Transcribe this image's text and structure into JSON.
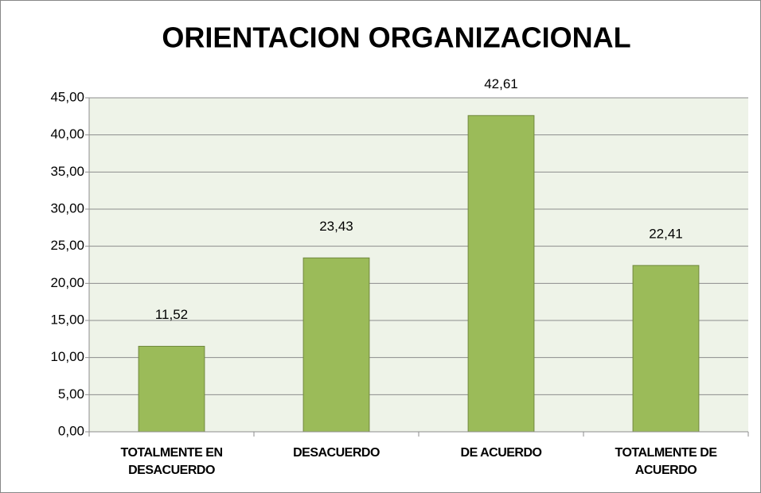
{
  "chart_data": {
    "type": "bar",
    "title": "ORIENTACION ORGANIZACIONAL",
    "categories": [
      "TOTALMENTE EN DESACUERDO",
      "DESACUERDO",
      "DE ACUERDO",
      "TOTALMENTE DE ACUERDO"
    ],
    "values": [
      11.52,
      23.43,
      42.61,
      22.41
    ],
    "value_labels": [
      "11,52",
      "23,43",
      "42,61",
      "22,41"
    ],
    "color": "#9bbb59",
    "ylim": [
      0,
      45
    ],
    "yticks": [
      {
        "value": 0,
        "label": "0,00"
      },
      {
        "value": 5,
        "label": "5,00"
      },
      {
        "value": 10,
        "label": "10,00"
      },
      {
        "value": 15,
        "label": "15,00"
      },
      {
        "value": 20,
        "label": "20,00"
      },
      {
        "value": 25,
        "label": "25,00"
      },
      {
        "value": 30,
        "label": "30,00"
      },
      {
        "value": 35,
        "label": "35,00"
      },
      {
        "value": 40,
        "label": "40,00"
      },
      {
        "value": 45,
        "label": "45,00"
      }
    ],
    "grid": true
  }
}
